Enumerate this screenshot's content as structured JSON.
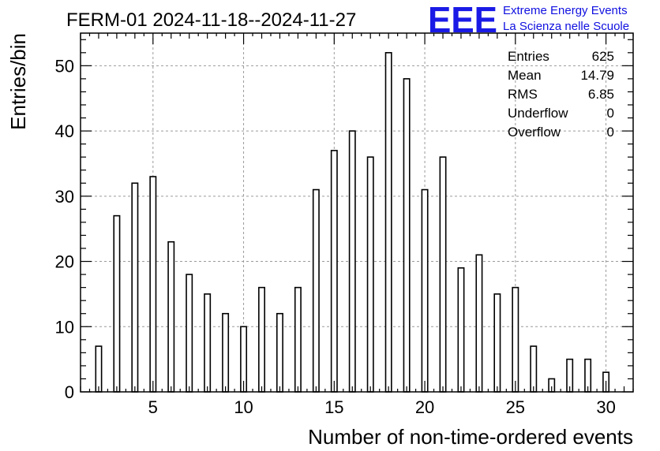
{
  "title": "FERM-01 2024-11-18--2024-11-27",
  "logo": {
    "mark": "EEE",
    "line1": "Extreme Energy Events",
    "line2": "La Scienza nelle Scuole",
    "color": "#1a1ae6"
  },
  "stats": [
    {
      "label": "Entries",
      "value": "625"
    },
    {
      "label": "Mean",
      "value": "14.79"
    },
    {
      "label": "RMS",
      "value": "6.85"
    },
    {
      "label": "Underflow",
      "value": "0"
    },
    {
      "label": "Overflow",
      "value": "0"
    }
  ],
  "chart_data": {
    "type": "bar",
    "xlabel": "Number of non-time-ordered events",
    "ylabel": "Entries/bin",
    "xlim": [
      1,
      31.5
    ],
    "ylim": [
      0,
      55
    ],
    "xticks": [
      5,
      10,
      15,
      20,
      25,
      30
    ],
    "yticks": [
      0,
      10,
      20,
      30,
      40,
      50
    ],
    "grid": true,
    "x": [
      2,
      3,
      4,
      5,
      6,
      7,
      8,
      9,
      10,
      11,
      12,
      13,
      14,
      15,
      16,
      17,
      18,
      19,
      20,
      21,
      22,
      23,
      24,
      25,
      26,
      27,
      28,
      29,
      30
    ],
    "values": [
      7,
      27,
      32,
      33,
      23,
      18,
      15,
      12,
      10,
      16,
      12,
      16,
      31,
      37,
      40,
      36,
      52,
      48,
      31,
      36,
      19,
      21,
      15,
      16,
      7,
      2,
      5,
      5,
      3
    ]
  }
}
